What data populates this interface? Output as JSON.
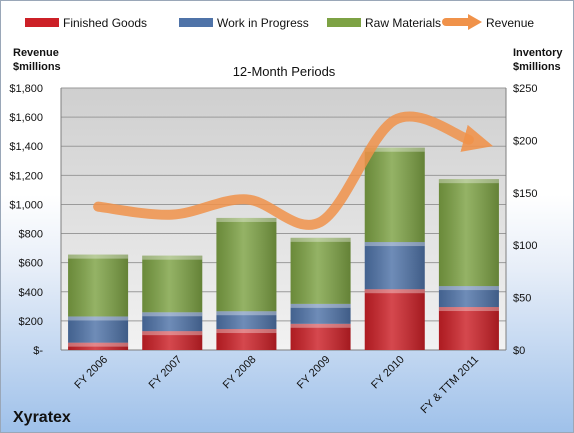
{
  "chart_data": {
    "type": "bar",
    "stacked": true,
    "subtitle": "12-Month Periods",
    "company": "Xyratex",
    "categories": [
      "FY 2006",
      "FY 2007",
      "FY 2008",
      "FY 2009",
      "FY 2010",
      "FY & TTM 2011"
    ],
    "series": [
      {
        "name": "Finished Goods",
        "type": "bar",
        "axis": "right",
        "color": "#cc2027",
        "values": [
          7,
          18,
          20,
          25,
          58,
          41
        ]
      },
      {
        "name": "Work in Progress",
        "type": "bar",
        "axis": "right",
        "color": "#4f73a8",
        "values": [
          25,
          18,
          17,
          19,
          45,
          20
        ]
      },
      {
        "name": "Raw Materials",
        "type": "bar",
        "axis": "right",
        "color": "#7da244",
        "values": [
          59,
          54,
          89,
          63,
          90,
          102
        ]
      },
      {
        "name": "Revenue",
        "type": "line",
        "axis": "left",
        "color": "#f0924a",
        "values": [
          985,
          930,
          1035,
          880,
          1580,
          1445
        ]
      }
    ],
    "left_axis": {
      "title_lines": [
        "Revenue",
        "$millions"
      ],
      "range": [
        0,
        1800
      ],
      "step": 200,
      "tick_labels": [
        "$-",
        "$200",
        "$400",
        "$600",
        "$800",
        "$1,000",
        "$1,200",
        "$1,400",
        "$1,600",
        "$1,800"
      ]
    },
    "right_axis": {
      "title_lines": [
        "Inventory",
        "$millions"
      ],
      "range": [
        0,
        250
      ],
      "step": 50,
      "tick_labels": [
        "$0",
        "$50",
        "$100",
        "$150",
        "$200",
        "$250"
      ]
    },
    "legend_position": "top",
    "grid": true
  }
}
